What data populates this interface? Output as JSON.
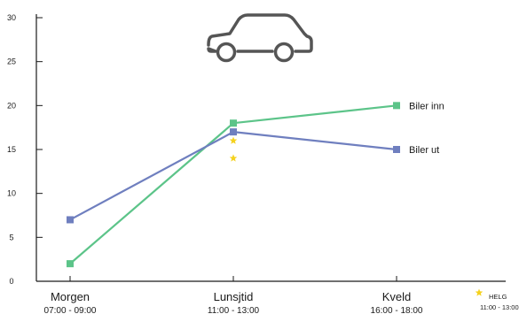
{
  "colors": {
    "green": "#5cc489",
    "blue": "#6f7fbf",
    "star": "#f5d21f",
    "axis": "#1a1a1a",
    "car": "#555555"
  },
  "icon": "car-icon",
  "chart_data": {
    "type": "line",
    "categories": [
      {
        "name": "Morgen",
        "time": "07:00 - 09:00"
      },
      {
        "name": "Lunsjtid",
        "time": "11:00 - 13:00"
      },
      {
        "name": "Kveld",
        "time": "16:00 - 18:00"
      }
    ],
    "ylim": [
      0,
      30
    ],
    "yticks": [
      0,
      5,
      10,
      15,
      20,
      25,
      30
    ],
    "series": [
      {
        "name": "Biler inn",
        "values": [
          2,
          18,
          20
        ],
        "color": "#5cc489"
      },
      {
        "name": "Biler ut",
        "values": [
          7,
          17,
          15
        ],
        "color": "#6f7fbf"
      }
    ],
    "weekend": {
      "name": "HELG",
      "time": "11:00 - 13:00",
      "category": "Lunsjtid",
      "values": [
        16,
        14
      ],
      "color": "#f5d21f"
    },
    "xlabel": "",
    "ylabel": "",
    "title": "",
    "grid": false
  }
}
